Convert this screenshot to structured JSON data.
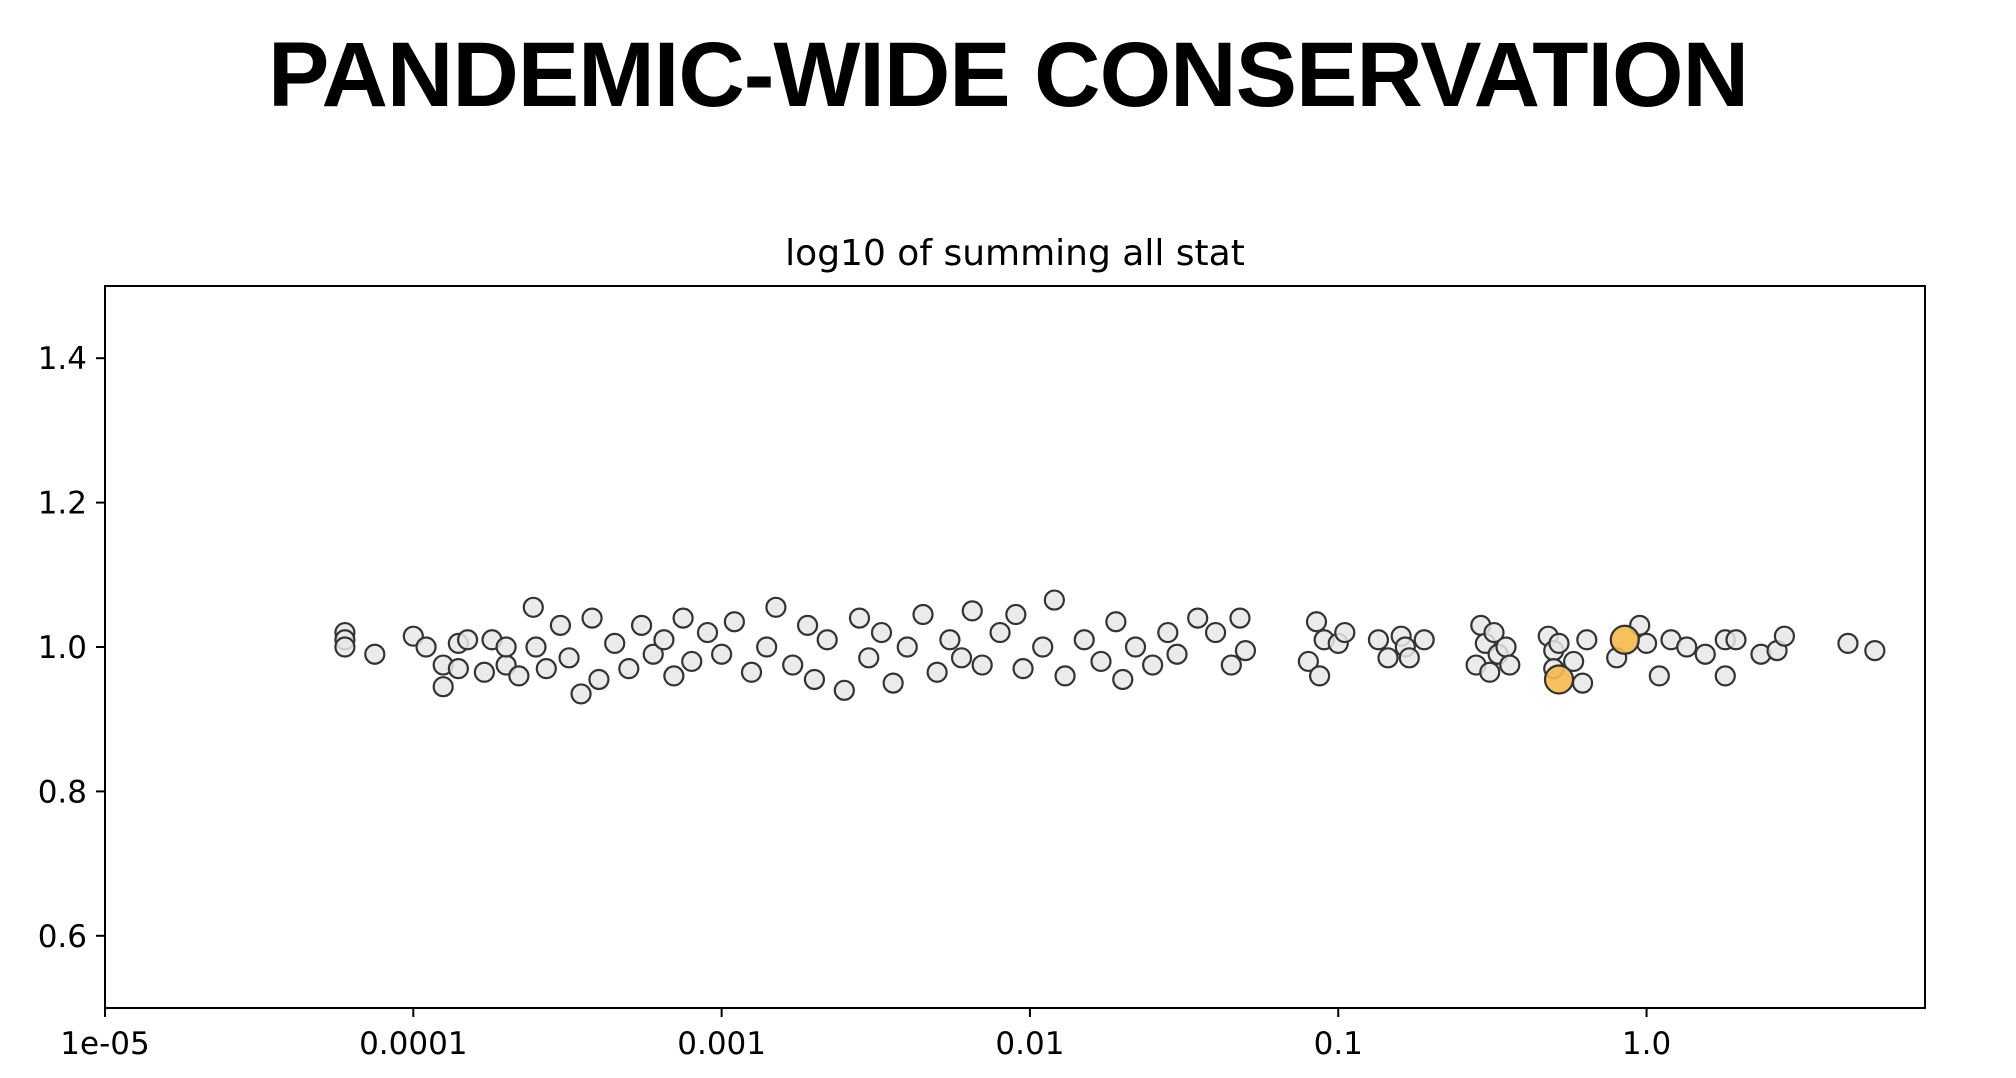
{
  "slide": {
    "title": "PANDEMIC-WIDE CONSERVATION"
  },
  "chart_data": {
    "type": "scatter",
    "title": "log10 of summing all stat",
    "xlabel": "",
    "ylabel": "",
    "x_scale": "log",
    "xlim": [
      1e-05,
      8
    ],
    "ylim": [
      0.5,
      1.5
    ],
    "x_ticks": [
      1e-05,
      0.0001,
      0.001,
      0.01,
      0.1,
      1.0
    ],
    "x_tick_labels": [
      "1e-05",
      "0.0001",
      "0.001",
      "0.01",
      "0.1",
      "1.0"
    ],
    "y_ticks": [
      0.6,
      0.8,
      1.0,
      1.2,
      1.4
    ],
    "y_tick_labels": [
      "0.6",
      "0.8",
      "1.0",
      "1.2",
      "1.4"
    ],
    "grid": false,
    "colors": {
      "point_fill": "#e8e8e8",
      "point_edge": "#333333",
      "highlight_fill": "#f5b94c",
      "axis": "#000000"
    },
    "series": [
      {
        "role": "background",
        "points": [
          [
            6e-05,
            1.02
          ],
          [
            6e-05,
            1.01
          ],
          [
            6e-05,
            1.0
          ],
          [
            7.5e-05,
            0.99
          ],
          [
            0.0001,
            1.015
          ],
          [
            0.00011,
            1.0
          ],
          [
            0.000125,
            0.975
          ],
          [
            0.000125,
            0.945
          ],
          [
            0.00014,
            0.97
          ],
          [
            0.00014,
            1.005
          ],
          [
            0.00015,
            1.01
          ],
          [
            0.00017,
            0.965
          ],
          [
            0.00018,
            1.01
          ],
          [
            0.0002,
            0.975
          ],
          [
            0.0002,
            1.0
          ],
          [
            0.00022,
            0.96
          ],
          [
            0.000245,
            1.055
          ],
          [
            0.00025,
            1.0
          ],
          [
            0.00027,
            0.97
          ],
          [
            0.0003,
            1.03
          ],
          [
            0.00032,
            0.985
          ],
          [
            0.00035,
            0.935
          ],
          [
            0.00038,
            1.04
          ],
          [
            0.0004,
            0.955
          ],
          [
            0.00045,
            1.005
          ],
          [
            0.0005,
            0.97
          ],
          [
            0.00055,
            1.03
          ],
          [
            0.0006,
            0.99
          ],
          [
            0.00065,
            1.01
          ],
          [
            0.0007,
            0.96
          ],
          [
            0.00075,
            1.04
          ],
          [
            0.0008,
            0.98
          ],
          [
            0.0009,
            1.02
          ],
          [
            0.001,
            0.99
          ],
          [
            0.0011,
            1.035
          ],
          [
            0.00125,
            0.965
          ],
          [
            0.0014,
            1.0
          ],
          [
            0.0015,
            1.055
          ],
          [
            0.0017,
            0.975
          ],
          [
            0.0019,
            1.03
          ],
          [
            0.002,
            0.955
          ],
          [
            0.0022,
            1.01
          ],
          [
            0.0025,
            0.94
          ],
          [
            0.0028,
            1.04
          ],
          [
            0.003,
            0.985
          ],
          [
            0.0033,
            1.02
          ],
          [
            0.0036,
            0.95
          ],
          [
            0.004,
            1.0
          ],
          [
            0.0045,
            1.045
          ],
          [
            0.005,
            0.965
          ],
          [
            0.0055,
            1.01
          ],
          [
            0.006,
            0.985
          ],
          [
            0.0065,
            1.05
          ],
          [
            0.007,
            0.975
          ],
          [
            0.008,
            1.02
          ],
          [
            0.009,
            1.045
          ],
          [
            0.0095,
            0.97
          ],
          [
            0.011,
            1.0
          ],
          [
            0.012,
            1.065
          ],
          [
            0.013,
            0.96
          ],
          [
            0.015,
            1.01
          ],
          [
            0.017,
            0.98
          ],
          [
            0.019,
            1.035
          ],
          [
            0.02,
            0.955
          ],
          [
            0.022,
            1.0
          ],
          [
            0.025,
            0.975
          ],
          [
            0.028,
            1.02
          ],
          [
            0.03,
            0.99
          ],
          [
            0.035,
            1.04
          ],
          [
            0.04,
            1.02
          ],
          [
            0.045,
            0.975
          ],
          [
            0.048,
            1.04
          ],
          [
            0.05,
            0.995
          ],
          [
            0.08,
            0.98
          ],
          [
            0.085,
            1.035
          ],
          [
            0.087,
            0.96
          ],
          [
            0.09,
            1.01
          ],
          [
            0.1,
            1.005
          ],
          [
            0.105,
            1.02
          ],
          [
            0.135,
            1.01
          ],
          [
            0.145,
            0.985
          ],
          [
            0.16,
            1.015
          ],
          [
            0.165,
            1.0
          ],
          [
            0.17,
            0.985
          ],
          [
            0.19,
            1.01
          ],
          [
            0.28,
            0.975
          ],
          [
            0.29,
            1.03
          ],
          [
            0.3,
            1.005
          ],
          [
            0.31,
            0.965
          ],
          [
            0.32,
            1.02
          ],
          [
            0.33,
            0.99
          ],
          [
            0.35,
            1.0
          ],
          [
            0.36,
            0.975
          ],
          [
            0.48,
            1.015
          ],
          [
            0.5,
            0.995
          ],
          [
            0.5,
            0.97
          ],
          [
            0.52,
            1.005
          ],
          [
            0.58,
            0.98
          ],
          [
            0.62,
            0.95
          ],
          [
            0.64,
            1.01
          ],
          [
            0.8,
            0.985
          ],
          [
            0.95,
            1.03
          ],
          [
            1.0,
            1.005
          ],
          [
            1.1,
            0.96
          ],
          [
            1.2,
            1.01
          ],
          [
            1.35,
            1.0
          ],
          [
            1.55,
            0.99
          ],
          [
            1.8,
            1.01
          ],
          [
            1.8,
            0.96
          ],
          [
            1.95,
            1.01
          ],
          [
            2.35,
            0.99
          ],
          [
            2.65,
            0.995
          ],
          [
            2.8,
            1.015
          ],
          [
            4.5,
            1.005
          ],
          [
            5.5,
            0.995
          ]
        ]
      },
      {
        "role": "highlight",
        "points": [
          [
            0.85,
            1.01
          ],
          [
            0.52,
            0.955
          ]
        ]
      }
    ]
  }
}
